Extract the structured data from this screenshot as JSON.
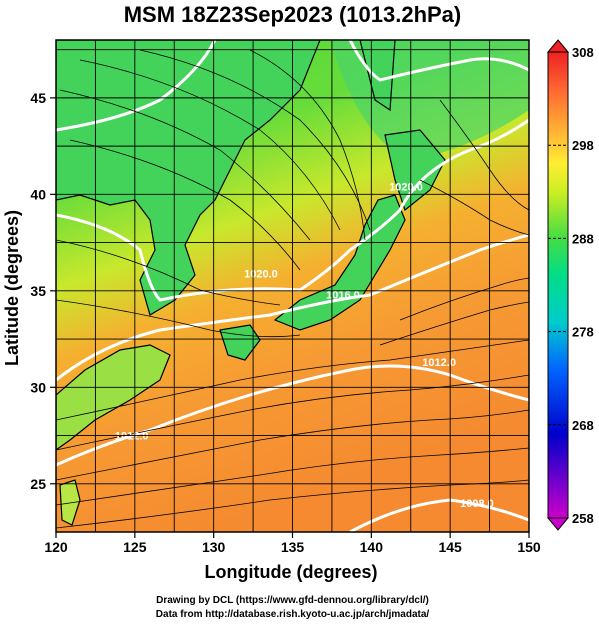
{
  "title": "MSM 18Z23Sep2023 (1013.2hPa)",
  "x_axis": {
    "label": "Longitude (degrees)",
    "ticks": [
      "120",
      "125",
      "130",
      "135",
      "140",
      "145",
      "150"
    ],
    "range": [
      120,
      150
    ]
  },
  "y_axis": {
    "label": "Latitude  (degrees)",
    "ticks": [
      "25",
      "30",
      "35",
      "40",
      "45"
    ],
    "range": [
      22.5,
      48
    ]
  },
  "colorbar": {
    "ticks": [
      "258",
      "268",
      "278",
      "288",
      "298",
      "308"
    ],
    "range": [
      258,
      308
    ],
    "colors": [
      "#cc00cc",
      "#0000cc",
      "#0066ff",
      "#00cccc",
      "#00dd88",
      "#44dd44",
      "#ccee22",
      "#ffee33",
      "#ffaa33",
      "#ff6633",
      "#ee2222"
    ]
  },
  "contours": [
    {
      "label": "1020.0",
      "lon": 133.0,
      "lat": 35.7
    },
    {
      "label": "1020.0",
      "lon": 142.2,
      "lat": 40.2
    },
    {
      "label": "1016.0",
      "lon": 138.2,
      "lat": 34.6
    },
    {
      "label": "1012.0",
      "lon": 124.8,
      "lat": 27.3
    },
    {
      "label": "1012.0",
      "lon": 144.3,
      "lat": 31.1
    },
    {
      "label": "1008.0",
      "lon": 146.7,
      "lat": 23.8
    }
  ],
  "credits": {
    "line1": "Drawing by DCL (https://www.gfd-dennou.org/library/dcl/)",
    "line2": "Data from http://database.rish.kyoto-u.ac.jp/arch/jmadata/"
  }
}
